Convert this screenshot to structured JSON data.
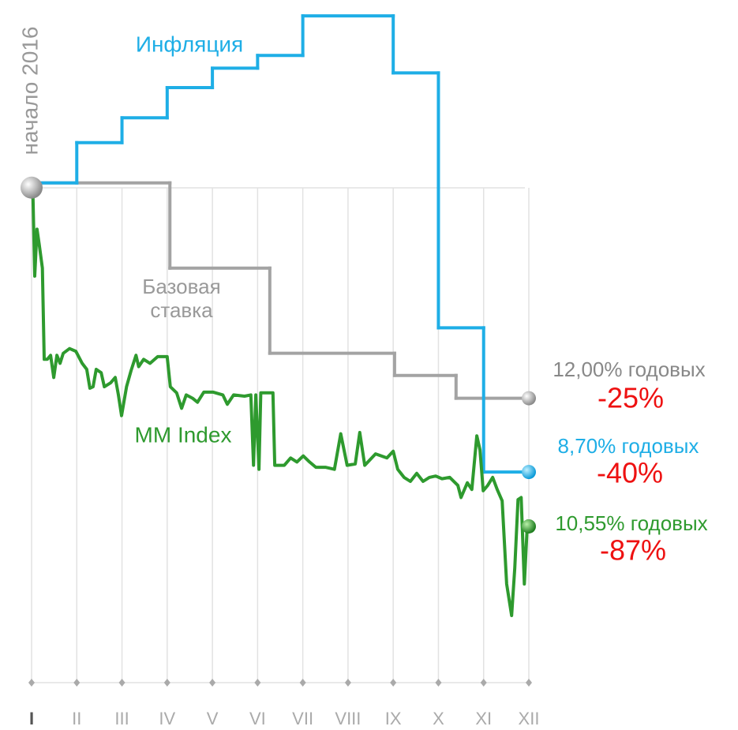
{
  "chart_data": {
    "type": "line",
    "start_label": "начало 2016",
    "xlim": [
      1,
      12
    ],
    "ylim": [
      0,
      100
    ],
    "grid": true,
    "change_color": "#ee1111",
    "xticks": [
      {
        "value": 1,
        "label": "I"
      },
      {
        "value": 2,
        "label": "II"
      },
      {
        "value": 3,
        "label": "III"
      },
      {
        "value": 4,
        "label": "IV"
      },
      {
        "value": 5,
        "label": "V"
      },
      {
        "value": 6,
        "label": "VI"
      },
      {
        "value": 7,
        "label": "VII"
      },
      {
        "value": 8,
        "label": "VIII"
      },
      {
        "value": 9,
        "label": "IX"
      },
      {
        "value": 10,
        "label": "X"
      },
      {
        "value": 11,
        "label": "XI"
      },
      {
        "value": 12,
        "label": "XII"
      }
    ],
    "series": [
      {
        "name": "Инфляция",
        "color": "#1eaee6",
        "step": true,
        "x": [
          1,
          2,
          3,
          4,
          5,
          6,
          7,
          9,
          10,
          11,
          12
        ],
        "values": [
          74.5,
          80.5,
          84.2,
          88.7,
          91.6,
          93.5,
          99.4,
          90.9,
          52.9,
          31.4,
          31.4
        ],
        "end_label": "8,70% годовых",
        "change": "-40%"
      },
      {
        "name": "Базовая ставка",
        "color": "#a3a3a3",
        "step": true,
        "x": [
          1,
          4.06,
          6.27,
          9.03,
          10.39,
          12
        ],
        "values": [
          74.5,
          61.8,
          49.1,
          45.8,
          42.4,
          42.4
        ],
        "end_label": "12,00% годовых",
        "change": "-25%"
      },
      {
        "name": "MM Index",
        "color": "#2e9a2e",
        "step": false,
        "x": [
          1.03,
          1.07,
          1.12,
          1.17,
          1.24,
          1.28,
          1.35,
          1.42,
          1.49,
          1.56,
          1.63,
          1.7,
          1.84,
          1.98,
          2.12,
          2.22,
          2.29,
          2.36,
          2.43,
          2.54,
          2.61,
          2.75,
          2.85,
          2.92,
          2.99,
          3.1,
          3.2,
          3.31,
          3.37,
          3.48,
          3.62,
          3.79,
          4.0,
          4.07,
          4.21,
          4.32,
          4.42,
          4.56,
          4.67,
          4.81,
          5.02,
          5.23,
          5.33,
          5.47,
          5.71,
          5.85,
          5.91,
          5.96,
          6.03,
          6.07,
          6.34,
          6.38,
          6.59,
          6.73,
          6.87,
          7.01,
          7.15,
          7.29,
          7.5,
          7.7,
          7.84,
          7.98,
          8.16,
          8.26,
          8.37,
          8.61,
          8.86,
          9.0,
          9.1,
          9.24,
          9.38,
          9.52,
          9.66,
          9.8,
          9.94,
          10.08,
          10.25,
          10.43,
          10.5,
          10.64,
          10.74,
          10.85,
          10.92,
          10.99,
          11.09,
          11.2,
          11.3,
          11.41,
          11.51,
          11.62,
          11.69,
          11.76,
          11.83,
          11.9,
          11.97,
          12.0
        ],
        "values": [
          72.9,
          60.6,
          67.6,
          65.3,
          61.8,
          48.2,
          48.2,
          48.8,
          45.5,
          48.8,
          47.6,
          49.1,
          49.8,
          49.4,
          47.6,
          46.7,
          43.9,
          44.1,
          46.7,
          46.2,
          44.1,
          44.7,
          45.5,
          42.9,
          39.8,
          44.1,
          46.5,
          48.8,
          47.1,
          48.2,
          47.6,
          48.6,
          48.6,
          44.1,
          43.2,
          40.9,
          42.9,
          42.4,
          41.8,
          43.3,
          43.3,
          42.9,
          41.5,
          42.9,
          42.7,
          42.9,
          32.4,
          42.9,
          31.8,
          43.2,
          43.2,
          32.4,
          32.4,
          33.5,
          32.9,
          33.8,
          32.9,
          32.1,
          32.1,
          31.8,
          37.1,
          32.4,
          32.6,
          37.3,
          32.4,
          34.1,
          33.5,
          34.5,
          31.8,
          30.6,
          30.0,
          31.2,
          30.0,
          30.6,
          30.8,
          30.4,
          30.6,
          29.4,
          27.6,
          29.8,
          28.8,
          36.8,
          34.7,
          28.6,
          29.4,
          30.6,
          28.8,
          27.1,
          14.7,
          10.0,
          17.1,
          27.3,
          27.6,
          14.7,
          24.1,
          23.3
        ],
        "end_label": "10,55% годовых",
        "change": "-87%"
      }
    ]
  }
}
